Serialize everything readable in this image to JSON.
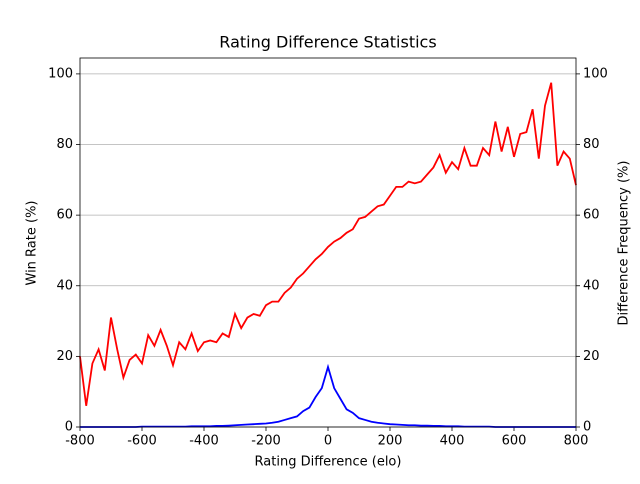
{
  "chart_data": {
    "type": "line",
    "title": "Rating Difference Statistics",
    "x_label": "Rating Difference (elo)",
    "y_label": "Win Rate (%)",
    "y2_label": "Difference Frequency (%)",
    "x": [
      -800,
      -780,
      -760,
      -740,
      -720,
      -700,
      -680,
      -660,
      -640,
      -620,
      -600,
      -580,
      -560,
      -540,
      -520,
      -500,
      -480,
      -460,
      -440,
      -420,
      -400,
      -380,
      -360,
      -340,
      -320,
      -300,
      -280,
      -260,
      -240,
      -220,
      -200,
      -180,
      -160,
      -140,
      -120,
      -100,
      -80,
      -60,
      -40,
      -20,
      0,
      20,
      40,
      60,
      80,
      100,
      120,
      140,
      160,
      180,
      200,
      220,
      240,
      260,
      280,
      300,
      320,
      340,
      360,
      380,
      400,
      420,
      440,
      460,
      480,
      500,
      520,
      540,
      560,
      580,
      600,
      620,
      640,
      660,
      680,
      700,
      720,
      740,
      760,
      780,
      800
    ],
    "series": [
      {
        "name": "Win Rate (%)",
        "color": "#ff0000",
        "values": [
          20,
          6,
          18,
          22,
          16,
          31,
          22,
          14,
          19,
          20.5,
          18,
          26,
          23,
          27.5,
          23,
          17.5,
          24,
          22,
          26.5,
          21.5,
          24,
          24.5,
          24,
          26.5,
          25.5,
          32,
          28,
          31,
          32,
          31.5,
          34.5,
          35.5,
          35.5,
          38,
          39.5,
          42,
          43.5,
          45.5,
          47.5,
          49,
          51,
          52.5,
          53.5,
          55,
          56,
          59,
          59.5,
          61,
          62.5,
          63,
          65.5,
          68,
          68,
          69.5,
          69,
          69.5,
          71.5,
          73.5,
          77,
          72,
          75,
          73,
          79,
          74,
          74,
          79,
          77,
          86.5,
          78,
          85,
          76.5,
          83,
          83.5,
          90,
          76,
          91,
          97.5,
          74,
          78,
          76,
          68.5
        ]
      },
      {
        "name": "Difference Frequency (%)",
        "color": "#0000ff",
        "axis": "y2",
        "values": [
          0,
          0,
          0,
          0,
          0,
          0,
          0,
          0,
          0,
          0,
          0.1,
          0.1,
          0.1,
          0.1,
          0.1,
          0.1,
          0.1,
          0.1,
          0.2,
          0.2,
          0.2,
          0.2,
          0.3,
          0.3,
          0.4,
          0.5,
          0.6,
          0.7,
          0.8,
          0.9,
          1,
          1.2,
          1.5,
          2,
          2.5,
          3,
          4.5,
          5.5,
          8.5,
          11,
          17,
          11,
          8,
          5,
          4,
          2.5,
          2,
          1.5,
          1.2,
          1,
          0.8,
          0.7,
          0.6,
          0.5,
          0.5,
          0.4,
          0.4,
          0.3,
          0.3,
          0.2,
          0.2,
          0.2,
          0.1,
          0.1,
          0.1,
          0.1,
          0.1,
          0,
          0,
          0,
          0,
          0,
          0,
          0,
          0,
          0,
          0,
          0,
          0,
          0,
          0
        ]
      }
    ],
    "xlim": [
      -800,
      800
    ],
    "xticks": [
      -800,
      -600,
      -400,
      -200,
      0,
      200,
      400,
      600,
      800
    ],
    "ylim": [
      0,
      104.5
    ],
    "yticks": [
      0,
      20,
      40,
      60,
      80,
      100
    ],
    "y2lim": [
      0,
      104.5
    ],
    "y2ticks": [
      0,
      20,
      40,
      60,
      80,
      100
    ],
    "grid": true
  }
}
